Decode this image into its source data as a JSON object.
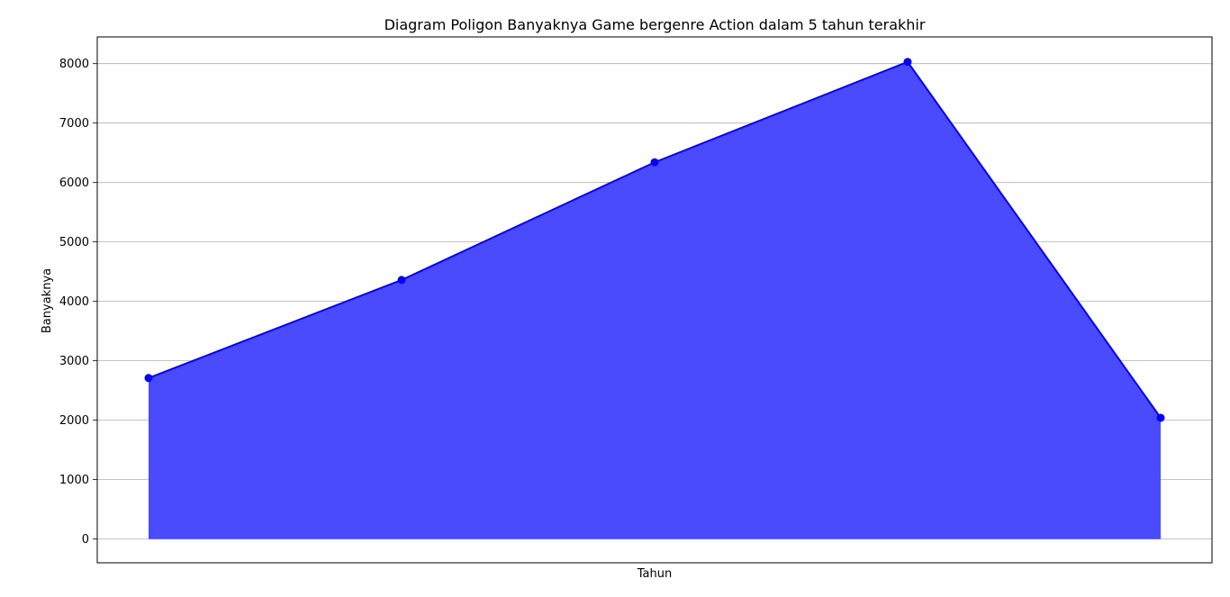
{
  "chart_data": {
    "type": "area",
    "title": "Diagram Poligon Banyaknya Game bergenre Action dalam 5 tahun terakhir",
    "xlabel": "Tahun",
    "ylabel": "Banyaknya",
    "x_tick_labels_visible": false,
    "values": [
      2710,
      4360,
      6340,
      8030,
      2040
    ],
    "ylim": [
      -400,
      8450
    ],
    "yticks": [
      0,
      1000,
      2000,
      3000,
      4000,
      5000,
      6000,
      7000,
      8000
    ],
    "grid": "horizontal",
    "legend": "none",
    "colors": {
      "fill": "#4a4aff",
      "line": "#0000ff",
      "marker": "#0000ff",
      "grid": "#b0b0b0",
      "frame": "#000000"
    }
  }
}
